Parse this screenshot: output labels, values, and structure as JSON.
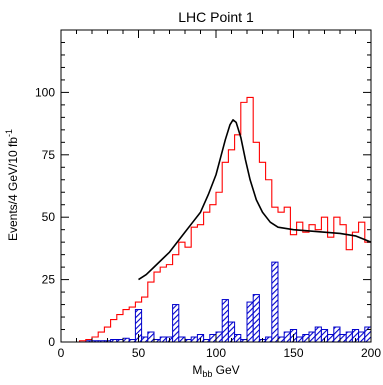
{
  "chart_data": {
    "type": "histogram",
    "title": "LHC Point 1",
    "xlabel": {
      "main": "M",
      "sub": "bb",
      "rest": " GeV"
    },
    "ylabel": {
      "main": "Events/4 GeV/10 fb",
      "sup": "-1"
    },
    "xlim": [
      0,
      200
    ],
    "ylim": [
      0,
      125
    ],
    "x_ticks": [
      0,
      50,
      100,
      150,
      200
    ],
    "y_ticks": [
      0,
      25,
      50,
      75,
      100
    ],
    "bin_width": 4,
    "grid": false,
    "series": [
      {
        "style": "red-step",
        "color": "#ff0000",
        "bin_edges_start": 0,
        "values": [
          0,
          0,
          0,
          0.5,
          1,
          2,
          4,
          6,
          9,
          11,
          13,
          14,
          16,
          18,
          24,
          28,
          30,
          31,
          35,
          40,
          38,
          46,
          47,
          52,
          55,
          60,
          72,
          77,
          83,
          96,
          98,
          80,
          72,
          65,
          54,
          52,
          54,
          43,
          48,
          44,
          47,
          45,
          50,
          42,
          50,
          47,
          37,
          44,
          48,
          40
        ]
      },
      {
        "style": "blue-hatched",
        "color": "#0000cc",
        "bin_edges_start": 0,
        "values": [
          0,
          0,
          0,
          0,
          0.5,
          0.5,
          0.5,
          0.5,
          1,
          1,
          1.5,
          1,
          13,
          2,
          4,
          1,
          2,
          2,
          15,
          2,
          1,
          2,
          3,
          1,
          3,
          4,
          17,
          8,
          3,
          1,
          16,
          19,
          1,
          2,
          32,
          2,
          4,
          5,
          2,
          3,
          4,
          6,
          5,
          3,
          6,
          3,
          4,
          5,
          4,
          6
        ]
      },
      {
        "style": "black-fit",
        "color": "#000000",
        "x": [
          50,
          55,
          60,
          65,
          70,
          75,
          80,
          85,
          90,
          95,
          100,
          103,
          106,
          109,
          111,
          113,
          116,
          119,
          122,
          126,
          130,
          135,
          140,
          145,
          150,
          160,
          170,
          180,
          190,
          200
        ],
        "y": [
          25,
          27,
          30,
          33,
          36,
          40,
          44,
          48,
          52,
          59,
          67,
          74,
          81,
          87,
          89,
          88,
          82,
          73,
          65,
          57,
          52,
          48,
          46,
          45.5,
          45,
          44.5,
          44,
          43.5,
          42.5,
          40
        ]
      }
    ]
  }
}
